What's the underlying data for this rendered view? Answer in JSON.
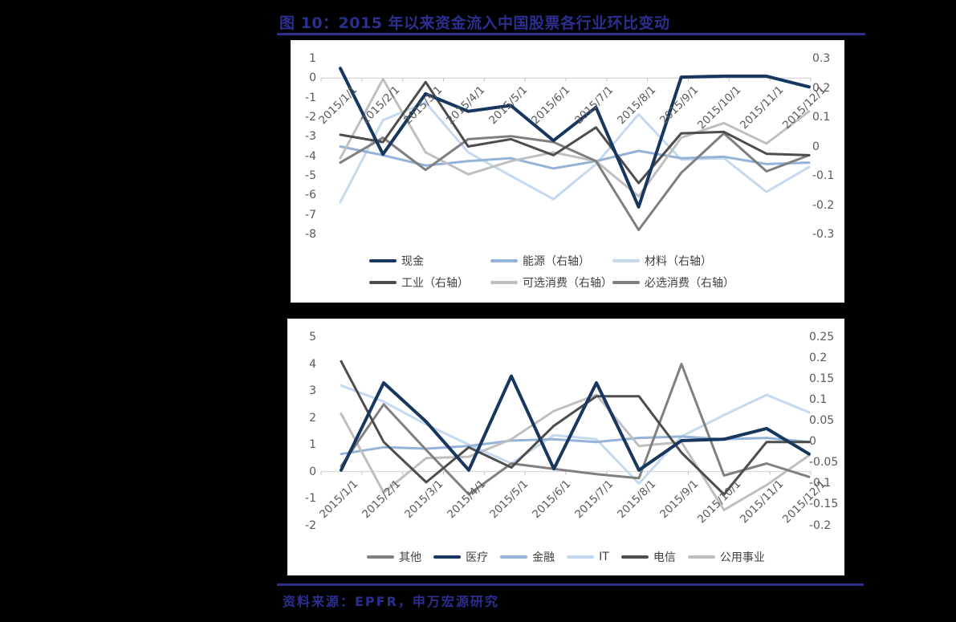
{
  "title": {
    "text": "图 10：2015 年以来资金流入中国股票各行业环比变动"
  },
  "source": {
    "text": "资料来源：EPFR，申万宏源研究"
  },
  "colors": {
    "page_bg": "#000000",
    "accent_blue": "#2B2F90",
    "panel_bg": "#FFFFFF",
    "axis_text": "#595959",
    "axis_line": "#D9D9D9",
    "tick_mark": "#BFBFBF",
    "legend_text": "#404040"
  },
  "chart_data": [
    {
      "type": "line",
      "title": "",
      "categories": [
        "2015/1/1",
        "2015/2/1",
        "2015/3/1",
        "2015/4/1",
        "2015/5/1",
        "2015/6/1",
        "2015/7/1",
        "2015/8/1",
        "2015/9/1",
        "2015/10/1",
        "2015/11/1",
        "2015/12/1"
      ],
      "left_axis": {
        "tick_labels": [
          "1",
          "0",
          "-1",
          "-2",
          "-3",
          "-4",
          "-5",
          "-6",
          "-7",
          "-8"
        ],
        "max": 1,
        "min": -8
      },
      "right_axis": {
        "tick_labels": [
          "0.3",
          "0.2",
          "0.1",
          "0",
          "-0.1",
          "-0.2",
          "-0.3"
        ],
        "max": 0.3,
        "min": -0.3
      },
      "grid": false,
      "legend_position": "bottom",
      "series": [
        {
          "name": "现金",
          "axis": "left",
          "color": "#17375E",
          "width": 4,
          "values": [
            0.5,
            -3.9,
            -0.8,
            -1.7,
            -1.4,
            -3.2,
            -1.5,
            -6.6,
            0.05,
            0.1,
            0.1,
            -0.45
          ]
        },
        {
          "name": "能源（右轴）",
          "axis": "right",
          "color": "#95B3D7",
          "width": 3,
          "values": [
            0.0,
            -0.03,
            -0.065,
            -0.05,
            -0.04,
            -0.075,
            -0.05,
            -0.015,
            -0.04,
            -0.035,
            -0.06,
            -0.055
          ]
        },
        {
          "name": "材料（右轴）",
          "axis": "right",
          "color": "#C5D9F1",
          "width": 3,
          "values": [
            -0.19,
            0.09,
            0.15,
            -0.02,
            -0.1,
            -0.18,
            -0.06,
            0.11,
            -0.045,
            -0.04,
            -0.155,
            -0.07
          ]
        },
        {
          "name": "工业（右轴）",
          "axis": "right",
          "color": "#4D4D4D",
          "width": 3,
          "values": [
            0.04,
            0.015,
            0.22,
            0.0,
            0.025,
            -0.03,
            0.065,
            -0.125,
            0.045,
            0.05,
            -0.025,
            -0.03
          ]
        },
        {
          "name": "可选消费（右轴）",
          "axis": "right",
          "color": "#BFBFBF",
          "width": 3,
          "values": [
            -0.04,
            0.23,
            -0.02,
            -0.095,
            -0.05,
            -0.02,
            -0.05,
            -0.17,
            0.03,
            0.08,
            0.01,
            0.12
          ]
        },
        {
          "name": "必选消费（右轴）",
          "axis": "right",
          "color": "#7F7F7F",
          "width": 3,
          "values": [
            -0.055,
            0.03,
            -0.08,
            0.025,
            0.035,
            0.015,
            -0.05,
            -0.285,
            -0.09,
            0.045,
            -0.085,
            -0.03
          ]
        }
      ]
    },
    {
      "type": "line",
      "title": "",
      "categories": [
        "2015/1/1",
        "2015/2/1",
        "2015/3/1",
        "2015/4/1",
        "2015/5/1",
        "2015/6/1",
        "2015/7/1",
        "2015/8/1",
        "2015/9/1",
        "2015/10/1",
        "2015/11/1",
        "2015/12/1"
      ],
      "left_axis": {
        "tick_labels": [
          "5",
          "4",
          "3",
          "2",
          "1",
          "0",
          "-1",
          "-2"
        ],
        "max": 5,
        "min": -2
      },
      "right_axis": {
        "tick_labels": [
          "0.25",
          "0.2",
          "0.15",
          "0.1",
          "0.05",
          "0",
          "-0.05",
          "-0.1",
          "-0.15",
          "-0.2"
        ],
        "max": 0.25,
        "min": -0.2
      },
      "grid": false,
      "legend_position": "bottom",
      "series": [
        {
          "name": "其他",
          "axis": "left",
          "color": "#808080",
          "width": 3,
          "values": [
            0.2,
            2.5,
            0.8,
            -0.85,
            0.3,
            0.1,
            -0.1,
            -0.25,
            4.0,
            -0.15,
            0.3,
            -0.2
          ]
        },
        {
          "name": "医疗",
          "axis": "left",
          "color": "#17375E",
          "width": 4,
          "values": [
            0.05,
            3.3,
            1.85,
            0.05,
            3.55,
            0.1,
            3.3,
            0.05,
            1.15,
            1.2,
            1.6,
            0.65
          ]
        },
        {
          "name": "金融",
          "axis": "left",
          "color": "#95B3D7",
          "width": 3,
          "values": [
            0.65,
            0.9,
            0.85,
            0.95,
            1.15,
            1.2,
            1.1,
            1.25,
            1.3,
            1.2,
            1.25,
            1.1
          ]
        },
        {
          "name": "IT",
          "axis": "left",
          "color": "#C5D9F1",
          "width": 3,
          "values": [
            3.2,
            2.6,
            1.75,
            1.0,
            0.3,
            1.35,
            1.2,
            -0.45,
            1.3,
            2.1,
            2.85,
            2.2
          ]
        },
        {
          "name": "电信",
          "axis": "left",
          "color": "#4D4D4D",
          "width": 3,
          "values": [
            4.1,
            1.1,
            -0.4,
            0.9,
            0.15,
            1.7,
            2.8,
            2.8,
            0.7,
            -0.85,
            1.1,
            1.1
          ]
        },
        {
          "name": "公用事业",
          "axis": "left",
          "color": "#BFBFBF",
          "width": 3,
          "values": [
            2.15,
            -0.78,
            0.5,
            0.55,
            1.2,
            2.25,
            2.85,
            0.95,
            1.1,
            -1.43,
            -0.5,
            0.6
          ]
        }
      ]
    }
  ]
}
